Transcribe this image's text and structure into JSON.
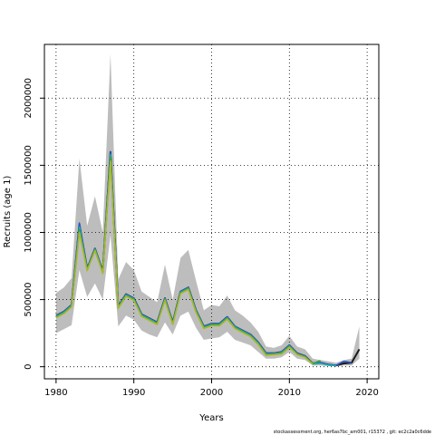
{
  "chart_data": {
    "type": "line",
    "title": "",
    "xlabel": "Years",
    "ylabel": "Recruits (age 1)",
    "xlim": [
      1978.5,
      2021.5
    ],
    "ylim": [
      -90000,
      2400000
    ],
    "grid": true,
    "x_ticks": [
      1980,
      1990,
      2000,
      2010,
      2020
    ],
    "y_ticks": [
      0,
      500000,
      1000000,
      1500000,
      2000000
    ],
    "x_tick_labels": [
      "1980",
      "1990",
      "2000",
      "2010",
      "2020"
    ],
    "y_tick_labels": [
      "0",
      "500000",
      "1000000",
      "1500000",
      "2000000"
    ],
    "band": {
      "color": "#bdbdbd",
      "x": [
        1980,
        1981,
        1982,
        1983,
        1984,
        1985,
        1986,
        1987,
        1988,
        1989,
        1990,
        1991,
        1992,
        1993,
        1994,
        1995,
        1996,
        1997,
        1998,
        1999,
        2000,
        2001,
        2002,
        2003,
        2004,
        2005,
        2006,
        2007,
        2008,
        2009,
        2010,
        2011,
        2012,
        2013,
        2014,
        2015,
        2016,
        2017,
        2018,
        2019
      ],
      "lower": [
        250000,
        280000,
        310000,
        720000,
        520000,
        620000,
        500000,
        980000,
        300000,
        380000,
        350000,
        270000,
        240000,
        220000,
        330000,
        240000,
        380000,
        410000,
        290000,
        200000,
        210000,
        220000,
        260000,
        200000,
        180000,
        160000,
        110000,
        60000,
        60000,
        70000,
        110000,
        60000,
        50000,
        10000,
        10000,
        5000,
        3000,
        10000,
        10000,
        60000
      ],
      "upper": [
        550000,
        590000,
        660000,
        1550000,
        1050000,
        1270000,
        1000000,
        2330000,
        650000,
        780000,
        720000,
        560000,
        520000,
        480000,
        760000,
        500000,
        810000,
        870000,
        640000,
        420000,
        460000,
        450000,
        530000,
        420000,
        380000,
        330000,
        260000,
        150000,
        140000,
        160000,
        230000,
        150000,
        130000,
        60000,
        50000,
        40000,
        30000,
        50000,
        60000,
        300000
      ]
    },
    "series": [
      {
        "color": "#1a1a1a",
        "x": [
          1980,
          1981,
          1982,
          1983,
          1984,
          1985,
          1986,
          1987,
          1988,
          1989,
          1990,
          1991,
          1992,
          1993,
          1994,
          1995,
          1996,
          1997,
          1998,
          1999,
          2000,
          2001,
          2002,
          2003,
          2004,
          2005,
          2006,
          2007,
          2008,
          2009,
          2010,
          2011,
          2012,
          2013,
          2014,
          2015,
          2016,
          2017,
          2018,
          2019
        ],
        "values": [
          380000,
          410000,
          460000,
          1060000,
          730000,
          880000,
          710000,
          1600000,
          450000,
          540000,
          510000,
          390000,
          360000,
          330000,
          510000,
          330000,
          560000,
          590000,
          420000,
          300000,
          320000,
          320000,
          370000,
          300000,
          270000,
          240000,
          180000,
          100000,
          100000,
          110000,
          160000,
          100000,
          80000,
          25000,
          30000,
          15000,
          10000,
          25000,
          30000,
          130000
        ]
      },
      {
        "color": "#2b55c9",
        "x": [
          1980,
          1981,
          1982,
          1983,
          1984,
          1985,
          1986,
          1987,
          1988,
          1989,
          1990,
          1991,
          1992,
          1993,
          1994,
          1995,
          1996,
          1997,
          1998,
          1999,
          2000,
          2001,
          2002,
          2003,
          2004,
          2005,
          2006,
          2007,
          2008,
          2009,
          2010,
          2011,
          2012,
          2013,
          2014,
          2015,
          2016,
          2017,
          2018
        ],
        "values": [
          380000,
          410000,
          460000,
          1070000,
          730000,
          880000,
          710000,
          1600000,
          450000,
          540000,
          510000,
          390000,
          360000,
          330000,
          510000,
          330000,
          560000,
          590000,
          420000,
          300000,
          320000,
          320000,
          370000,
          300000,
          270000,
          240000,
          180000,
          100000,
          100000,
          110000,
          160000,
          100000,
          80000,
          25000,
          30000,
          15000,
          10000,
          40000,
          30000
        ]
      },
      {
        "color": "#1bb0b0",
        "x": [
          1980,
          1981,
          1982,
          1983,
          1984,
          1985,
          1986,
          1987,
          1988,
          1989,
          1990,
          1991,
          1992,
          1993,
          1994,
          1995,
          1996,
          1997,
          1998,
          1999,
          2000,
          2001,
          2002,
          2003,
          2004,
          2005,
          2006,
          2007,
          2008,
          2009,
          2010,
          2011,
          2012,
          2013,
          2014,
          2015,
          2016
        ],
        "values": [
          375000,
          405000,
          455000,
          1040000,
          725000,
          875000,
          705000,
          1580000,
          445000,
          535000,
          505000,
          385000,
          355000,
          325000,
          505000,
          325000,
          555000,
          585000,
          415000,
          295000,
          315000,
          315000,
          365000,
          295000,
          265000,
          235000,
          175000,
          95000,
          95000,
          105000,
          155000,
          95000,
          75000,
          20000,
          25000,
          12000,
          8000
        ]
      },
      {
        "color": "#3aa03a",
        "x": [
          1980,
          1981,
          1982,
          1983,
          1984,
          1985,
          1986,
          1987,
          1988,
          1989,
          1990,
          1991,
          1992,
          1993,
          1994,
          1995,
          1996,
          1997,
          1998,
          1999,
          2000,
          2001,
          2002,
          2003,
          2004,
          2005,
          2006,
          2007,
          2008,
          2009,
          2010,
          2011,
          2012,
          2013,
          2014
        ],
        "values": [
          370000,
          400000,
          450000,
          1020000,
          720000,
          870000,
          700000,
          1560000,
          440000,
          530000,
          500000,
          380000,
          350000,
          320000,
          500000,
          320000,
          550000,
          580000,
          410000,
          290000,
          310000,
          310000,
          360000,
          290000,
          260000,
          230000,
          170000,
          90000,
          95000,
          100000,
          150000,
          95000,
          75000,
          25000,
          45000
        ]
      },
      {
        "color": "#a8b82a",
        "x": [
          1980,
          1981,
          1982,
          1983,
          1984,
          1985,
          1986,
          1987,
          1988,
          1989,
          1990,
          1991,
          1992,
          1993,
          1994,
          1995,
          1996,
          1997,
          1998,
          1999,
          2000,
          2001,
          2002,
          2003,
          2004,
          2005,
          2006,
          2007,
          2008,
          2009,
          2010,
          2011,
          2012,
          2013
        ],
        "values": [
          365000,
          395000,
          445000,
          1000000,
          715000,
          865000,
          695000,
          1530000,
          435000,
          525000,
          495000,
          375000,
          345000,
          315000,
          495000,
          315000,
          545000,
          575000,
          405000,
          285000,
          305000,
          305000,
          355000,
          285000,
          255000,
          225000,
          165000,
          85000,
          90000,
          95000,
          145000,
          90000,
          70000,
          20000
        ]
      }
    ],
    "footer": "stockassessment.org, her6as7bc_am001, r15372 , git: ec2c2a0c6dde"
  }
}
